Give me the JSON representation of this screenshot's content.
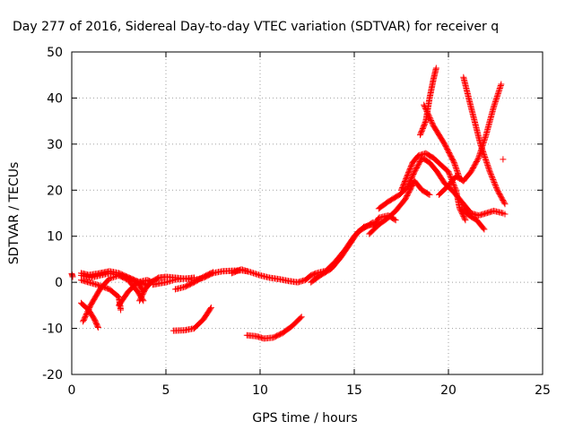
{
  "chart_data": {
    "type": "scatter",
    "title": "Day 277 of 2016, Sidereal Day-to-day VTEC variation (SDTVAR) for receiver q",
    "xlabel": "GPS time / hours",
    "ylabel": "SDTVAR / TECUs",
    "xlim": [
      0,
      25
    ],
    "ylim": [
      -20,
      50
    ],
    "xticks": [
      0,
      5,
      10,
      15,
      20,
      25
    ],
    "yticks": [
      -20,
      -10,
      0,
      10,
      20,
      30,
      40,
      50
    ],
    "grid": true,
    "marker": "+",
    "color": "#ff0000",
    "series": [
      {
        "tracks": [
          [
            [
              0.0,
              1.9
            ],
            [
              0.05,
              1.2
            ]
          ],
          [
            [
              0.5,
              2.0
            ],
            [
              0.9,
              1.6
            ],
            [
              1.4,
              1.9
            ],
            [
              2.0,
              2.4
            ],
            [
              2.5,
              2.0
            ],
            [
              3.0,
              1.1
            ],
            [
              3.5,
              0.2
            ],
            [
              4.0,
              -0.6
            ]
          ],
          [
            [
              0.5,
              0.5
            ],
            [
              0.9,
              0.0
            ],
            [
              1.4,
              -0.6
            ],
            [
              2.0,
              -1.5
            ],
            [
              2.5,
              -3.2
            ],
            [
              2.6,
              -6.0
            ]
          ],
          [
            [
              0.5,
              -4.5
            ],
            [
              0.9,
              -6.0
            ],
            [
              1.2,
              -8.0
            ],
            [
              1.4,
              -9.8
            ]
          ],
          [
            [
              0.6,
              -8.5
            ],
            [
              1.0,
              -5.0
            ],
            [
              1.5,
              -1.5
            ],
            [
              2.0,
              0.8
            ],
            [
              2.5,
              1.5
            ],
            [
              3.0,
              0.5
            ],
            [
              3.5,
              -2.0
            ],
            [
              3.8,
              -4.0
            ]
          ],
          [
            [
              0.5,
              1.5
            ],
            [
              1.0,
              1.0
            ],
            [
              1.5,
              1.5
            ],
            [
              2.0,
              2.0
            ],
            [
              2.5,
              1.5
            ],
            [
              3.0,
              1.0
            ],
            [
              3.5,
              0.0
            ],
            [
              3.8,
              -2.0
            ]
          ],
          [
            [
              2.5,
              -5.0
            ],
            [
              3.0,
              -2.0
            ],
            [
              3.5,
              0.0
            ],
            [
              4.0,
              0.5
            ],
            [
              4.3,
              0.0
            ]
          ],
          [
            [
              3.6,
              -4.0
            ],
            [
              3.9,
              -1.5
            ],
            [
              4.2,
              0.0
            ],
            [
              4.6,
              1.0
            ],
            [
              5.0,
              1.2
            ],
            [
              5.5,
              1.0
            ],
            [
              6.0,
              0.8
            ],
            [
              6.5,
              0.5
            ],
            [
              7.0,
              1.0
            ],
            [
              7.5,
              2.0
            ],
            [
              8.0,
              2.4
            ],
            [
              8.5,
              2.5
            ],
            [
              9.0,
              2.6
            ],
            [
              9.3,
              2.4
            ]
          ],
          [
            [
              4.3,
              -0.5
            ],
            [
              5.0,
              0.0
            ],
            [
              5.5,
              0.6
            ],
            [
              6.0,
              0.8
            ],
            [
              6.5,
              1.0
            ]
          ],
          [
            [
              5.5,
              -1.5
            ],
            [
              6.0,
              -1.0
            ],
            [
              6.5,
              0.0
            ],
            [
              7.0,
              1.2
            ],
            [
              7.5,
              2.2
            ]
          ],
          [
            [
              5.4,
              -10.5
            ],
            [
              6.0,
              -10.4
            ],
            [
              6.5,
              -10.0
            ],
            [
              7.0,
              -8.0
            ],
            [
              7.4,
              -5.5
            ]
          ],
          [
            [
              8.5,
              2.0
            ],
            [
              9.0,
              2.8
            ],
            [
              9.5,
              2.2
            ],
            [
              10.0,
              1.5
            ],
            [
              10.5,
              1.0
            ],
            [
              11.0,
              0.7
            ],
            [
              11.5,
              0.3
            ],
            [
              12.0,
              0.0
            ],
            [
              12.4,
              0.5
            ],
            [
              12.7,
              1.5
            ],
            [
              13.0,
              2.0
            ],
            [
              13.5,
              2.5
            ],
            [
              14.0,
              4.5
            ],
            [
              14.5,
              7.0
            ],
            [
              15.0,
              10.0
            ],
            [
              15.5,
              12.0
            ],
            [
              15.9,
              12.5
            ]
          ],
          [
            [
              9.3,
              -11.5
            ],
            [
              9.8,
              -11.7
            ],
            [
              10.2,
              -12.2
            ],
            [
              10.7,
              -12.0
            ],
            [
              11.2,
              -11.0
            ],
            [
              11.7,
              -9.5
            ],
            [
              12.2,
              -7.5
            ]
          ],
          [
            [
              12.7,
              0.0
            ],
            [
              13.2,
              1.5
            ],
            [
              13.8,
              3.0
            ],
            [
              14.3,
              5.5
            ],
            [
              14.8,
              8.5
            ],
            [
              15.2,
              11.0
            ],
            [
              15.6,
              12.0
            ],
            [
              16.0,
              13.0
            ]
          ],
          [
            [
              15.8,
              10.5
            ],
            [
              16.3,
              12.5
            ],
            [
              16.8,
              14.0
            ],
            [
              17.2,
              15.5
            ],
            [
              17.7,
              18.0
            ],
            [
              18.2,
              22.0
            ],
            [
              18.6,
              20.0
            ],
            [
              19.0,
              19.0
            ]
          ],
          [
            [
              16.0,
              12.0
            ],
            [
              16.3,
              14.0
            ],
            [
              16.8,
              14.5
            ],
            [
              17.2,
              13.5
            ]
          ],
          [
            [
              16.3,
              16.0
            ],
            [
              16.8,
              17.5
            ],
            [
              17.4,
              19.0
            ],
            [
              17.8,
              20.5
            ],
            [
              18.2,
              24.0
            ],
            [
              18.6,
              27.0
            ],
            [
              19.0,
              26.0
            ],
            [
              19.4,
              24.0
            ],
            [
              19.8,
              21.5
            ],
            [
              20.3,
              19.5
            ],
            [
              20.8,
              17.0
            ],
            [
              21.2,
              15.0
            ],
            [
              21.6,
              14.5
            ],
            [
              22.0,
              15.0
            ],
            [
              22.4,
              15.5
            ],
            [
              22.9,
              15.0
            ]
          ],
          [
            [
              17.5,
              20.0
            ],
            [
              17.8,
              23.0
            ],
            [
              18.1,
              26.0
            ],
            [
              18.4,
              27.5
            ],
            [
              18.8,
              28.0
            ],
            [
              19.2,
              27.0
            ],
            [
              19.6,
              25.5
            ],
            [
              20.0,
              24.0
            ],
            [
              20.4,
              20.0
            ],
            [
              20.6,
              16.0
            ],
            [
              20.9,
              13.5
            ]
          ],
          [
            [
              18.5,
              32.0
            ],
            [
              18.8,
              35.0
            ],
            [
              19.0,
              40.0
            ],
            [
              19.2,
              44.0
            ],
            [
              19.35,
              46.5
            ]
          ],
          [
            [
              18.7,
              38.5
            ],
            [
              19.2,
              34.0
            ],
            [
              19.8,
              30.0
            ],
            [
              20.3,
              26.0
            ],
            [
              20.6,
              22.5
            ]
          ],
          [
            [
              19.5,
              19.0
            ],
            [
              20.0,
              21.0
            ],
            [
              20.4,
              23.0
            ],
            [
              20.8,
              22.0
            ]
          ],
          [
            [
              20.7,
              16.0
            ],
            [
              21.1,
              14.5
            ],
            [
              21.5,
              13.5
            ],
            [
              21.9,
              11.5
            ]
          ],
          [
            [
              20.8,
              44.5
            ],
            [
              21.2,
              38.0
            ],
            [
              21.7,
              30.0
            ],
            [
              22.2,
              24.0
            ],
            [
              22.6,
              20.0
            ],
            [
              23.0,
              17.0
            ]
          ],
          [
            [
              20.8,
              22.0
            ],
            [
              21.2,
              24.0
            ],
            [
              21.6,
              27.0
            ],
            [
              22.0,
              32.0
            ],
            [
              22.4,
              38.0
            ],
            [
              22.8,
              43.0
            ]
          ],
          [
            [
              22.9,
              26.7
            ]
          ],
          [
            [
              23.0,
              14.8
            ]
          ]
        ]
      }
    ]
  }
}
